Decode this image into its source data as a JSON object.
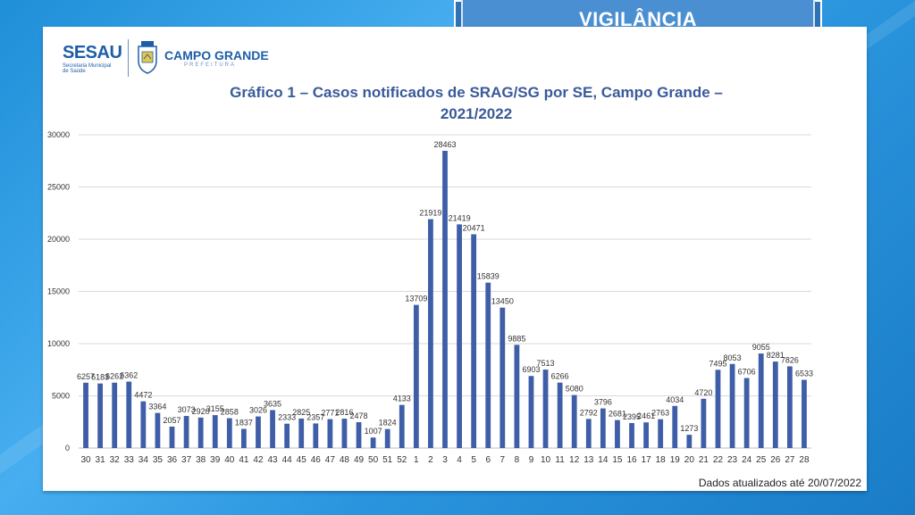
{
  "header": {
    "title": "VIGILÂNCIA"
  },
  "logos": {
    "sesau": "SESAU",
    "sesau_sub1": "Secretaria Municipal",
    "sesau_sub2": "de Saúde",
    "city": "CAMPO GRANDE",
    "city_sub": "PREFEITURA"
  },
  "footnote": "Dados atualizados até 20/07/2022",
  "colors": {
    "bar": "#3f5ea8",
    "title": "#3a5a9a",
    "grid": "#d9d9d9"
  },
  "chart_data": {
    "type": "bar",
    "title": "Gráfico 1 – Casos notificados de SRAG/SG por SE, Campo Grande – 2021/2022",
    "title_line1": "Gráfico 1 – Casos notificados de SRAG/SG por SE, Campo Grande –",
    "title_line2": "2021/2022",
    "xlabel": "",
    "ylabel": "",
    "ylim": [
      0,
      30000
    ],
    "yticks": [
      0,
      5000,
      10000,
      15000,
      20000,
      25000,
      30000
    ],
    "grid": true,
    "legend": "none",
    "categories": [
      "30",
      "31",
      "32",
      "33",
      "34",
      "35",
      "36",
      "37",
      "38",
      "39",
      "40",
      "41",
      "42",
      "43",
      "44",
      "45",
      "46",
      "47",
      "48",
      "49",
      "50",
      "51",
      "52",
      "1",
      "2",
      "3",
      "4",
      "5",
      "6",
      "7",
      "8",
      "9",
      "10",
      "11",
      "12",
      "13",
      "14",
      "15",
      "16",
      "17",
      "18",
      "19",
      "20",
      "21",
      "22",
      "23",
      "24",
      "25",
      "26",
      "27",
      "28"
    ],
    "values": [
      6257,
      6183,
      6262,
      6362,
      4472,
      3364,
      2057,
      3073,
      2920,
      3155,
      2858,
      1837,
      3026,
      3635,
      2333,
      2825,
      2357,
      2771,
      2816,
      2478,
      1007,
      1824,
      4133,
      13709,
      21919,
      28463,
      21419,
      20471,
      15839,
      13450,
      9885,
      6903,
      7513,
      6266,
      5080,
      2792,
      3796,
      2681,
      2395,
      2461,
      2763,
      4034,
      1273,
      4720,
      7495,
      8053,
      6706,
      9055,
      8281,
      7826,
      6533
    ]
  }
}
